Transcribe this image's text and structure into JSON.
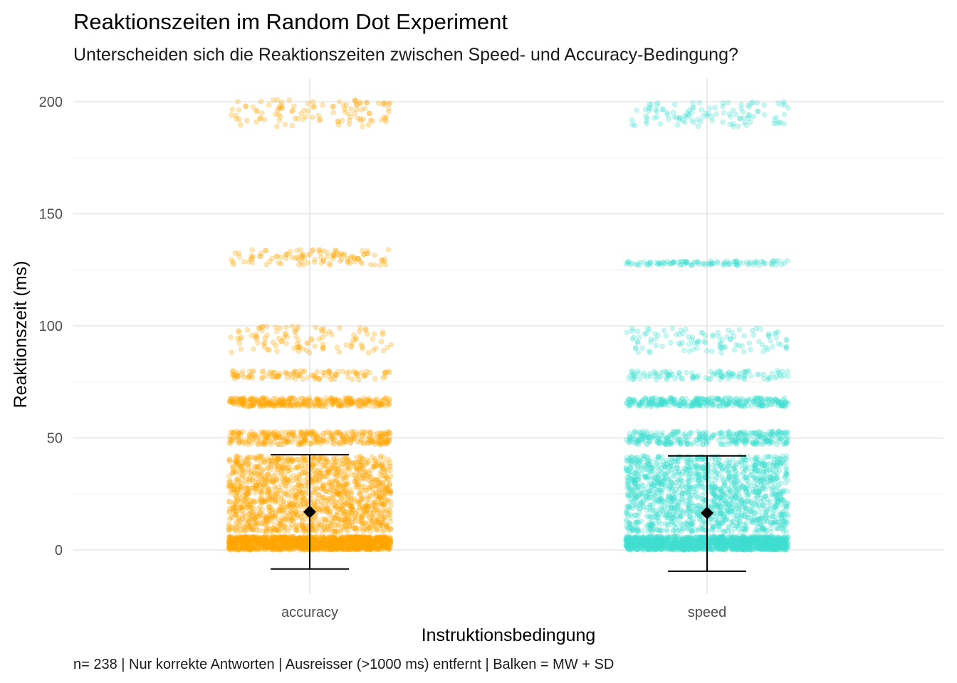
{
  "chart_data": {
    "type": "scatter",
    "subtype": "jitter-strip with mean and SD error bars",
    "title": "Reaktionszeiten im Random Dot Experiment",
    "subtitle": "Unterscheiden sich die Reaktionszeiten zwischen Speed- und Accuracy-Bedingung?",
    "xlabel": "Instruktionsbedingung",
    "ylabel": "Reaktionszeit (ms)",
    "caption": "n= 238 | Nur korrekte Antworten | Ausreisser (>1000 ms) entfernt | Balken = MW + SD",
    "categories": [
      "accuracy",
      "speed"
    ],
    "yticks": [
      0,
      50,
      100,
      150,
      200
    ],
    "ylim": [
      -20,
      210
    ],
    "grid": true,
    "legend": "none",
    "series": [
      {
        "category": "accuracy",
        "color": "#FFA500",
        "mean": 17,
        "sd": 25.5,
        "error_bar": [
          -8.5,
          42.5
        ],
        "point_clusters": [
          {
            "from": 0,
            "to": 6,
            "density": "very high"
          },
          {
            "from": 8,
            "to": 42,
            "density": "very high"
          },
          {
            "from": 47,
            "to": 53,
            "density": "medium"
          },
          {
            "from": 64,
            "to": 68,
            "density": "medium"
          },
          {
            "from": 76,
            "to": 80,
            "density": "low"
          },
          {
            "from": 88,
            "to": 100,
            "density": "low"
          },
          {
            "from": 127,
            "to": 134,
            "density": "low"
          },
          {
            "from": 189,
            "to": 201,
            "density": "low"
          }
        ]
      },
      {
        "category": "speed",
        "color": "#40E0D0",
        "mean": 16.5,
        "sd": 26,
        "error_bar": [
          -9.5,
          42
        ],
        "point_clusters": [
          {
            "from": 0,
            "to": 6,
            "density": "very high"
          },
          {
            "from": 8,
            "to": 42,
            "density": "very high"
          },
          {
            "from": 47,
            "to": 53,
            "density": "medium"
          },
          {
            "from": 64,
            "to": 68,
            "density": "medium"
          },
          {
            "from": 76,
            "to": 80,
            "density": "low"
          },
          {
            "from": 88,
            "to": 99,
            "density": "low"
          },
          {
            "from": 127,
            "to": 129,
            "density": "low"
          },
          {
            "from": 189,
            "to": 200,
            "density": "low"
          }
        ]
      }
    ]
  }
}
